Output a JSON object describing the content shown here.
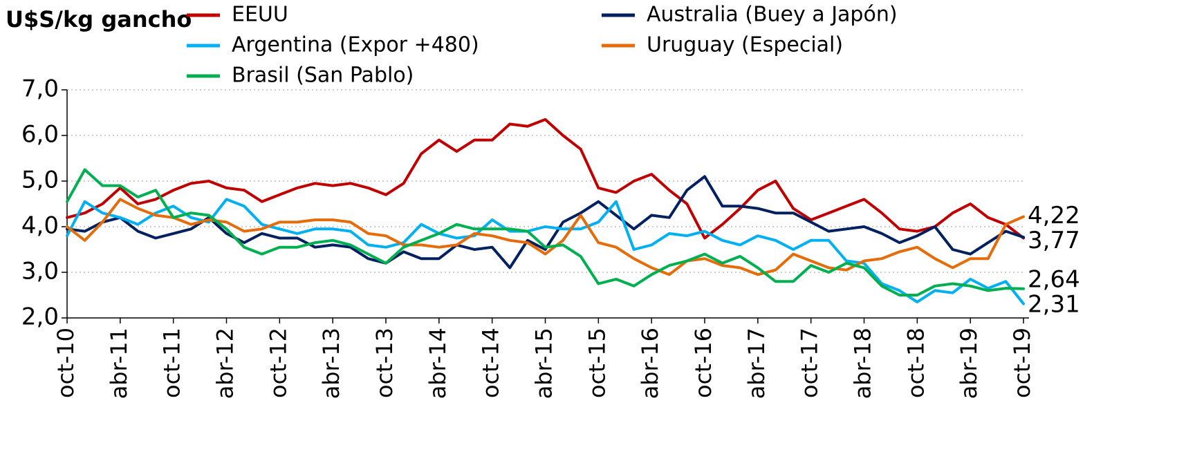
{
  "chart_data": {
    "type": "line",
    "title": "U$S/kg gancho",
    "categories": [
      "oct-10",
      null,
      null,
      "abr-11",
      null,
      null,
      "oct-11",
      null,
      null,
      "abr-12",
      null,
      null,
      "oct-12",
      null,
      null,
      "abr-13",
      null,
      null,
      "oct-13",
      null,
      null,
      "abr-14",
      null,
      null,
      "oct-14",
      null,
      null,
      "abr-15",
      null,
      null,
      "oct-15",
      null,
      null,
      "abr-16",
      null,
      null,
      "oct-16",
      null,
      null,
      "abr-17",
      null,
      null,
      "oct-17",
      null,
      null,
      "abr-18",
      null,
      null,
      "oct-18",
      null,
      null,
      "abr-19",
      null,
      null,
      "oct-19"
    ],
    "series": [
      {
        "name": "EEUU",
        "color": "#c00000",
        "values": [
          4.2,
          4.3,
          4.5,
          4.85,
          4.5,
          4.6,
          4.8,
          4.95,
          5.0,
          4.85,
          4.8,
          4.55,
          4.7,
          4.85,
          4.95,
          4.9,
          4.95,
          4.85,
          4.7,
          4.95,
          5.6,
          5.9,
          5.65,
          5.9,
          5.9,
          6.25,
          6.2,
          6.35,
          6.0,
          5.7,
          4.85,
          4.75,
          5.0,
          5.15,
          4.8,
          4.5,
          3.75,
          4.05,
          4.4,
          4.8,
          5.0,
          4.4,
          4.15,
          4.3,
          4.45,
          4.6,
          4.3,
          3.95,
          3.9,
          4.0,
          4.3,
          4.5,
          4.2,
          4.05,
          3.75
        ]
      },
      {
        "name": " Australia (Buey a Japón)",
        "color": "#002060",
        "values": [
          3.95,
          3.9,
          4.1,
          4.2,
          3.9,
          3.75,
          3.85,
          3.95,
          4.2,
          3.85,
          3.65,
          3.85,
          3.75,
          3.75,
          3.55,
          3.6,
          3.55,
          3.3,
          3.2,
          3.45,
          3.3,
          3.3,
          3.6,
          3.5,
          3.55,
          3.1,
          3.7,
          3.5,
          4.1,
          4.3,
          4.55,
          4.25,
          3.95,
          4.25,
          4.2,
          4.8,
          5.1,
          4.45,
          4.45,
          4.4,
          4.3,
          4.3,
          4.1,
          3.9,
          3.95,
          4.0,
          3.85,
          3.65,
          3.8,
          4.0,
          3.5,
          3.4,
          3.65,
          3.9,
          3.77
        ]
      },
      {
        "name": "Argentina (Expor +480)",
        "color": "#00b0f0",
        "values": [
          3.8,
          4.55,
          4.3,
          4.2,
          4.05,
          4.3,
          4.45,
          4.2,
          4.1,
          4.6,
          4.45,
          4.05,
          3.95,
          3.85,
          3.95,
          3.95,
          3.9,
          3.6,
          3.55,
          3.65,
          4.05,
          3.85,
          3.75,
          3.8,
          4.15,
          3.9,
          3.9,
          4.0,
          3.95,
          3.95,
          4.1,
          4.55,
          3.5,
          3.6,
          3.85,
          3.8,
          3.9,
          3.7,
          3.6,
          3.8,
          3.7,
          3.5,
          3.7,
          3.7,
          3.25,
          3.2,
          2.75,
          2.6,
          2.35,
          2.6,
          2.55,
          2.85,
          2.65,
          2.8,
          2.31
        ]
      },
      {
        "name": "Uruguay (Especial)",
        "color": "#e46c0a",
        "values": [
          4.0,
          3.7,
          4.1,
          4.6,
          4.4,
          4.25,
          4.2,
          4.05,
          4.15,
          4.1,
          3.9,
          3.95,
          4.1,
          4.1,
          4.15,
          4.15,
          4.1,
          3.85,
          3.8,
          3.6,
          3.6,
          3.55,
          3.6,
          3.85,
          3.8,
          3.7,
          3.65,
          3.4,
          3.7,
          4.25,
          3.65,
          3.55,
          3.3,
          3.1,
          2.95,
          3.25,
          3.3,
          3.15,
          3.1,
          2.95,
          3.05,
          3.4,
          3.25,
          3.1,
          3.05,
          3.25,
          3.3,
          3.45,
          3.55,
          3.3,
          3.1,
          3.3,
          3.3,
          4.05,
          4.22
        ]
      },
      {
        "name": "Brasil (San Pablo)",
        "color": "#00b050",
        "values": [
          4.55,
          5.25,
          4.9,
          4.9,
          4.65,
          4.8,
          4.2,
          4.3,
          4.25,
          3.95,
          3.55,
          3.4,
          3.55,
          3.55,
          3.65,
          3.7,
          3.6,
          3.4,
          3.2,
          3.55,
          3.7,
          3.85,
          4.05,
          3.95,
          3.95,
          3.95,
          3.9,
          3.55,
          3.6,
          3.35,
          2.75,
          2.85,
          2.7,
          2.95,
          3.15,
          3.25,
          3.4,
          3.2,
          3.35,
          3.1,
          2.8,
          2.8,
          3.15,
          3.0,
          3.2,
          3.1,
          2.7,
          2.5,
          2.5,
          2.7,
          2.75,
          2.7,
          2.6,
          2.65,
          2.64
        ]
      }
    ],
    "ylim": [
      2,
      7
    ],
    "yticks": [
      {
        "value": 2,
        "label": "2,0"
      },
      {
        "value": 3,
        "label": "3,0"
      },
      {
        "value": 4,
        "label": "4,0"
      },
      {
        "value": 5,
        "label": "5,0"
      },
      {
        "value": 6,
        "label": "6,0"
      },
      {
        "value": 7,
        "label": "7,0"
      }
    ],
    "grid": true,
    "annotations": [
      {
        "label": "4,22",
        "value": 4.22
      },
      {
        "label": "3,77",
        "value": 3.77
      },
      {
        "label": "2,64",
        "value": 2.64
      },
      {
        "label": "2,31",
        "value": 2.31
      }
    ]
  }
}
